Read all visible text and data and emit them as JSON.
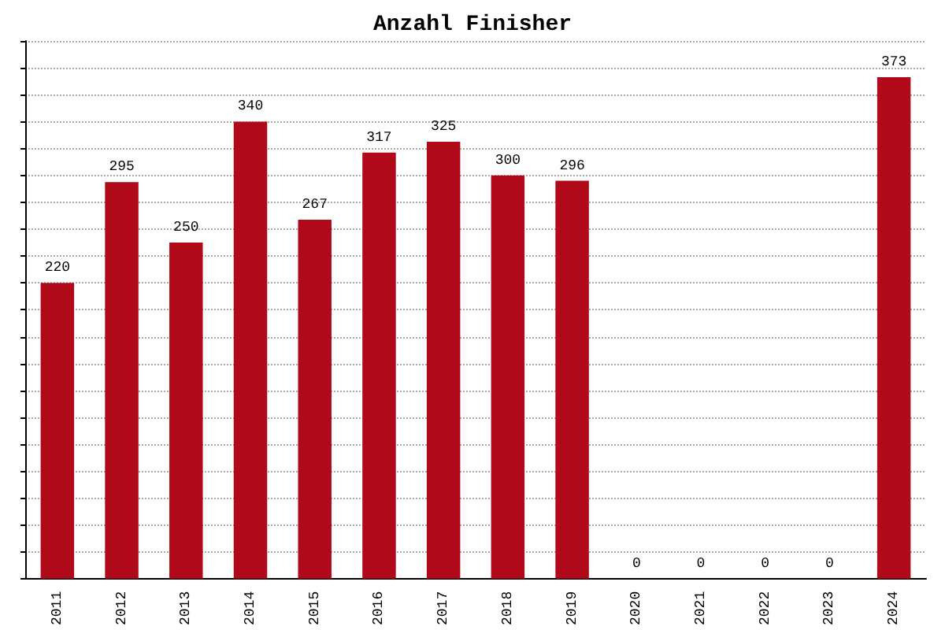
{
  "chart_data": {
    "type": "bar",
    "title": "Anzahl Finisher",
    "categories": [
      "2011",
      "2012",
      "2013",
      "2014",
      "2015",
      "2016",
      "2017",
      "2018",
      "2019",
      "2020",
      "2021",
      "2022",
      "2023",
      "2024"
    ],
    "values": [
      220,
      295,
      250,
      340,
      267,
      317,
      325,
      300,
      296,
      0,
      0,
      0,
      0,
      373
    ],
    "color": "#b00a1a",
    "data_labels": true,
    "grid": "y",
    "tick_labels": "x",
    "ylim": [
      0,
      400
    ],
    "yticks": [
      {
        "value": 0,
        "label": null
      },
      {
        "value": 20,
        "label": null
      },
      {
        "value": 40,
        "label": null
      },
      {
        "value": 60,
        "label": null
      },
      {
        "value": 80,
        "label": null
      },
      {
        "value": 100,
        "label": null
      },
      {
        "value": 120,
        "label": null
      },
      {
        "value": 140,
        "label": null
      },
      {
        "value": 160,
        "label": null
      },
      {
        "value": 180,
        "label": null
      },
      {
        "value": 200,
        "label": null
      },
      {
        "value": 220,
        "label": null
      },
      {
        "value": 240,
        "label": null
      },
      {
        "value": 260,
        "label": null
      },
      {
        "value": 280,
        "label": null
      },
      {
        "value": 300,
        "label": null
      },
      {
        "value": 320,
        "label": null
      },
      {
        "value": 340,
        "label": null
      },
      {
        "value": 360,
        "label": null
      },
      {
        "value": 380,
        "label": null
      },
      {
        "value": 400,
        "label": null
      }
    ]
  }
}
